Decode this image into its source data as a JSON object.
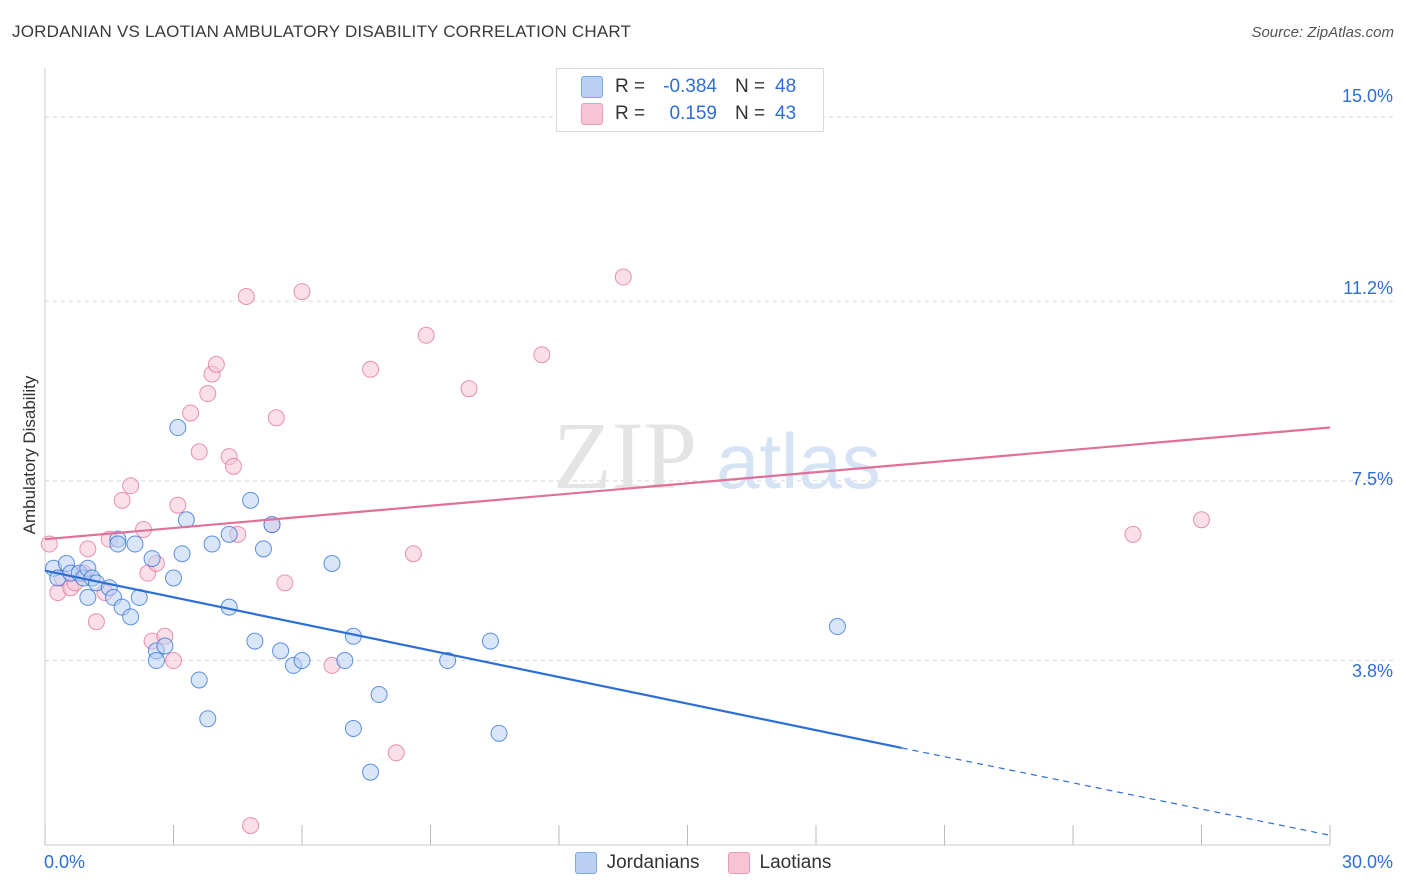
{
  "title": "JORDANIAN VS LAOTIAN AMBULATORY DISABILITY CORRELATION CHART",
  "source": "Source: ZipAtlas.com",
  "watermark": {
    "zip": "ZIP",
    "atlas": "atlas"
  },
  "colors": {
    "blue": "#2c6fd6",
    "blue_fill": "#b9d0f3",
    "pink": "#e0709a",
    "pink_fill": "#f7c4d6",
    "grid": "#d8d8d8"
  },
  "legend": {
    "rows": [
      {
        "r_label": "R =",
        "r_value": "-0.384",
        "n_label": "N =",
        "n_value": "48"
      },
      {
        "r_label": "R =",
        "r_value": "0.159",
        "n_label": "N =",
        "n_value": "43"
      }
    ]
  },
  "bottom_legend": {
    "series1": "Jordanians",
    "series2": "Laotians"
  },
  "chart_data": {
    "type": "scatter",
    "title": "JORDANIAN VS LAOTIAN AMBULATORY DISABILITY CORRELATION CHART",
    "xlabel": "",
    "ylabel": "Ambulatory Disability",
    "xlim": [
      0,
      30
    ],
    "ylim": [
      0,
      15.8
    ],
    "x_tick_labels": {
      "min": "0.0%",
      "max": "30.0%"
    },
    "y_ticks": [
      3.8,
      7.5,
      11.2,
      15.0
    ],
    "y_tick_labels": [
      "3.8%",
      "7.5%",
      "11.2%",
      "15.0%"
    ],
    "series": [
      {
        "name": "Jordanians",
        "color": "#2c6fd6",
        "points": [
          [
            0.2,
            5.7
          ],
          [
            0.3,
            5.5
          ],
          [
            0.5,
            5.8
          ],
          [
            0.6,
            5.6
          ],
          [
            0.8,
            5.6
          ],
          [
            0.9,
            5.5
          ],
          [
            1.0,
            5.7
          ],
          [
            1.0,
            5.1
          ],
          [
            1.1,
            5.5
          ],
          [
            1.2,
            5.4
          ],
          [
            1.5,
            5.3
          ],
          [
            1.6,
            5.1
          ],
          [
            1.8,
            4.9
          ],
          [
            1.7,
            6.3
          ],
          [
            1.7,
            6.2
          ],
          [
            2.0,
            4.7
          ],
          [
            2.1,
            6.2
          ],
          [
            2.2,
            5.1
          ],
          [
            2.5,
            5.9
          ],
          [
            2.6,
            4.0
          ],
          [
            2.6,
            3.8
          ],
          [
            2.8,
            4.1
          ],
          [
            3.0,
            5.5
          ],
          [
            3.3,
            6.7
          ],
          [
            3.1,
            8.6
          ],
          [
            3.2,
            6.0
          ],
          [
            3.6,
            3.4
          ],
          [
            3.8,
            2.6
          ],
          [
            3.9,
            6.2
          ],
          [
            4.3,
            6.4
          ],
          [
            4.3,
            4.9
          ],
          [
            4.8,
            7.1
          ],
          [
            4.9,
            4.2
          ],
          [
            5.1,
            6.1
          ],
          [
            5.3,
            6.6
          ],
          [
            5.5,
            4.0
          ],
          [
            5.8,
            3.7
          ],
          [
            6.0,
            3.8
          ],
          [
            6.7,
            5.8
          ],
          [
            7.0,
            3.8
          ],
          [
            7.2,
            4.3
          ],
          [
            7.2,
            2.4
          ],
          [
            7.8,
            3.1
          ],
          [
            7.6,
            1.5
          ],
          [
            9.4,
            3.8
          ],
          [
            10.4,
            4.2
          ],
          [
            10.6,
            2.3
          ],
          [
            18.5,
            4.5
          ]
        ]
      },
      {
        "name": "Laotians",
        "color": "#e0709a",
        "points": [
          [
            0.1,
            6.2
          ],
          [
            0.3,
            5.2
          ],
          [
            0.4,
            5.5
          ],
          [
            0.6,
            5.3
          ],
          [
            0.7,
            5.4
          ],
          [
            0.9,
            5.6
          ],
          [
            1.0,
            6.1
          ],
          [
            1.2,
            4.6
          ],
          [
            1.4,
            5.2
          ],
          [
            1.5,
            6.3
          ],
          [
            1.8,
            7.1
          ],
          [
            2.0,
            7.4
          ],
          [
            2.3,
            6.5
          ],
          [
            2.4,
            5.6
          ],
          [
            2.5,
            4.2
          ],
          [
            2.6,
            5.8
          ],
          [
            2.8,
            4.3
          ],
          [
            3.0,
            3.8
          ],
          [
            3.1,
            7.0
          ],
          [
            3.4,
            8.9
          ],
          [
            3.6,
            8.1
          ],
          [
            3.8,
            9.3
          ],
          [
            3.9,
            9.7
          ],
          [
            4.0,
            9.9
          ],
          [
            4.3,
            8.0
          ],
          [
            4.4,
            7.8
          ],
          [
            4.5,
            6.4
          ],
          [
            4.8,
            0.4
          ],
          [
            4.7,
            11.3
          ],
          [
            5.3,
            6.6
          ],
          [
            5.4,
            8.8
          ],
          [
            5.6,
            5.4
          ],
          [
            6.0,
            11.4
          ],
          [
            6.7,
            3.7
          ],
          [
            7.6,
            9.8
          ],
          [
            8.2,
            1.9
          ],
          [
            8.6,
            6.0
          ],
          [
            8.9,
            10.5
          ],
          [
            9.9,
            9.4
          ],
          [
            11.6,
            10.1
          ],
          [
            13.5,
            11.7
          ],
          [
            25.4,
            6.4
          ],
          [
            27.0,
            6.7
          ]
        ]
      }
    ],
    "trendlines": [
      {
        "series": "Jordanians",
        "x_start": 0,
        "y_start": 5.65,
        "x_solid_end": 20.0,
        "y_solid_end": 2.0,
        "x_end": 30,
        "y_end": 0.2
      },
      {
        "series": "Laotians",
        "x_start": 0,
        "y_start": 6.3,
        "x_end": 30,
        "y_end": 8.6
      }
    ]
  }
}
